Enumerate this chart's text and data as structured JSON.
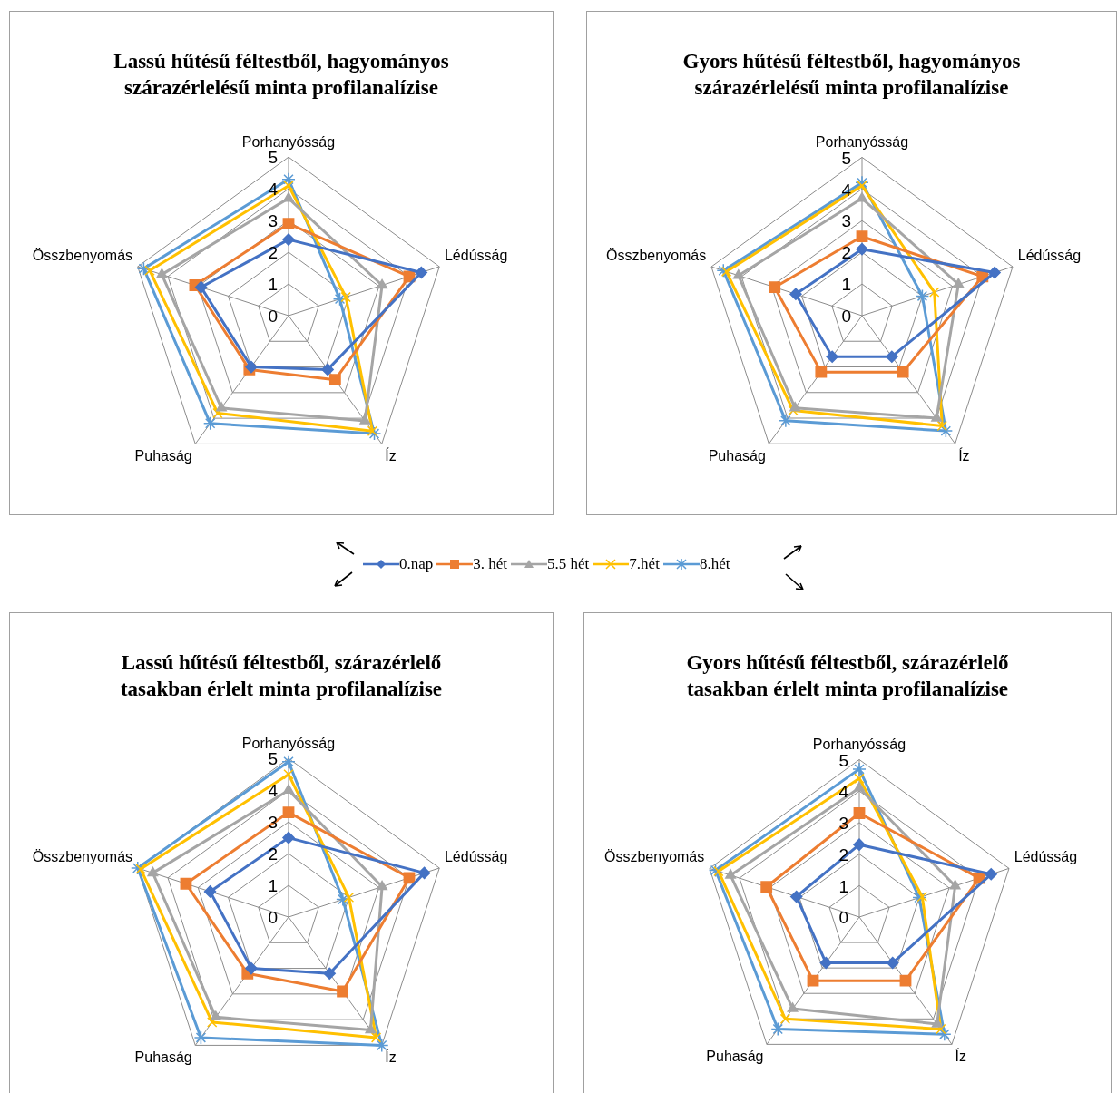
{
  "chart_data": [
    {
      "type": "radar",
      "title": "Lassú hűtésű féltestből, hagyományos szárazérlelésű minta profilanalízise",
      "categories": [
        "Porhanyósság",
        "Lédússág",
        "Íz",
        "Puhaság",
        "Összbenyomás"
      ],
      "ylim": [
        0,
        5
      ],
      "yticks": [
        0,
        1,
        2,
        3,
        4,
        5
      ],
      "grid": true,
      "legend": "bottom",
      "series": [
        {
          "name": "0.nap",
          "color": "#4472c4",
          "marker": "diamond",
          "values": [
            2.4,
            4.4,
            2.1,
            2.0,
            2.9
          ]
        },
        {
          "name": "3. hét",
          "color": "#ed7d31",
          "marker": "square",
          "values": [
            2.9,
            4.0,
            2.5,
            2.1,
            3.1
          ]
        },
        {
          "name": "5.5 hét",
          "color": "#a5a5a5",
          "marker": "triangle",
          "values": [
            3.7,
            3.1,
            4.1,
            3.6,
            4.2
          ]
        },
        {
          "name": "7.hét",
          "color": "#ffc000",
          "marker": "cross",
          "values": [
            4.1,
            1.9,
            4.5,
            3.8,
            4.6
          ]
        },
        {
          "name": "8.hét",
          "color": "#5b9bd5",
          "marker": "star",
          "values": [
            4.3,
            1.7,
            4.6,
            4.2,
            4.8
          ]
        }
      ]
    },
    {
      "type": "radar",
      "title": "Gyors hűtésű féltestből, hagyományos szárazérlelésű minta profilanalízise",
      "categories": [
        "Porhanyósság",
        "Lédússág",
        "Íz",
        "Puhaság",
        "Összbenyomás"
      ],
      "ylim": [
        0,
        5
      ],
      "yticks": [
        0,
        1,
        2,
        3,
        4,
        5
      ],
      "grid": true,
      "series": [
        {
          "color": "#4472c4",
          "marker": "diamond",
          "values": [
            2.1,
            4.4,
            1.6,
            1.6,
            2.2
          ]
        },
        {
          "color": "#ed7d31",
          "marker": "square",
          "values": [
            2.5,
            4.0,
            2.2,
            2.2,
            2.9
          ]
        },
        {
          "color": "#a5a5a5",
          "marker": "triangle",
          "values": [
            3.7,
            3.2,
            4.0,
            3.6,
            4.1
          ]
        },
        {
          "color": "#ffc000",
          "marker": "cross",
          "values": [
            4.1,
            2.4,
            4.3,
            3.7,
            4.5
          ]
        },
        {
          "color": "#5b9bd5",
          "marker": "star",
          "values": [
            4.2,
            2.0,
            4.5,
            4.1,
            4.6
          ]
        }
      ]
    },
    {
      "type": "radar",
      "title": "Lassú hűtésű féltestből, szárazérlelő tasakban érlelt minta profilanalízise",
      "categories": [
        "Porhanyósság",
        "Lédússág",
        "Íz",
        "Puhaság",
        "Összbenyomás"
      ],
      "ylim": [
        0,
        5
      ],
      "yticks": [
        0,
        1,
        2,
        3,
        4,
        5
      ],
      "grid": true,
      "series": [
        {
          "color": "#4472c4",
          "marker": "diamond",
          "values": [
            2.5,
            4.5,
            2.2,
            2.0,
            2.6
          ]
        },
        {
          "color": "#ed7d31",
          "marker": "square",
          "values": [
            3.3,
            4.0,
            2.9,
            2.2,
            3.4
          ]
        },
        {
          "color": "#a5a5a5",
          "marker": "triangle",
          "values": [
            4.0,
            3.1,
            4.4,
            3.9,
            4.5
          ]
        },
        {
          "color": "#ffc000",
          "marker": "cross",
          "values": [
            4.5,
            2.0,
            4.7,
            4.1,
            4.9
          ]
        },
        {
          "color": "#5b9bd5",
          "marker": "star",
          "values": [
            4.9,
            1.8,
            5.0,
            4.7,
            5.0
          ]
        }
      ]
    },
    {
      "type": "radar",
      "title": "Gyors hűtésű féltestből, szárazérlelő tasakban érlelt minta profilanalízise",
      "categories": [
        "Porhanyósság",
        "Lédússág",
        "Íz",
        "Puhaság",
        "Összbenyomás"
      ],
      "ylim": [
        0,
        5
      ],
      "yticks": [
        0,
        1,
        2,
        3,
        4,
        5
      ],
      "grid": true,
      "series": [
        {
          "color": "#4472c4",
          "marker": "diamond",
          "values": [
            2.3,
            4.4,
            1.8,
            1.8,
            2.1
          ]
        },
        {
          "color": "#ed7d31",
          "marker": "square",
          "values": [
            3.3,
            4.0,
            2.5,
            2.5,
            3.1
          ]
        },
        {
          "color": "#a5a5a5",
          "marker": "triangle",
          "values": [
            4.1,
            3.2,
            4.2,
            3.6,
            4.3
          ]
        },
        {
          "color": "#ffc000",
          "marker": "cross",
          "values": [
            4.4,
            2.1,
            4.4,
            4.0,
            4.7
          ]
        },
        {
          "color": "#5b9bd5",
          "marker": "star",
          "values": [
            4.7,
            2.0,
            4.6,
            4.4,
            4.8
          ]
        }
      ]
    }
  ]
}
